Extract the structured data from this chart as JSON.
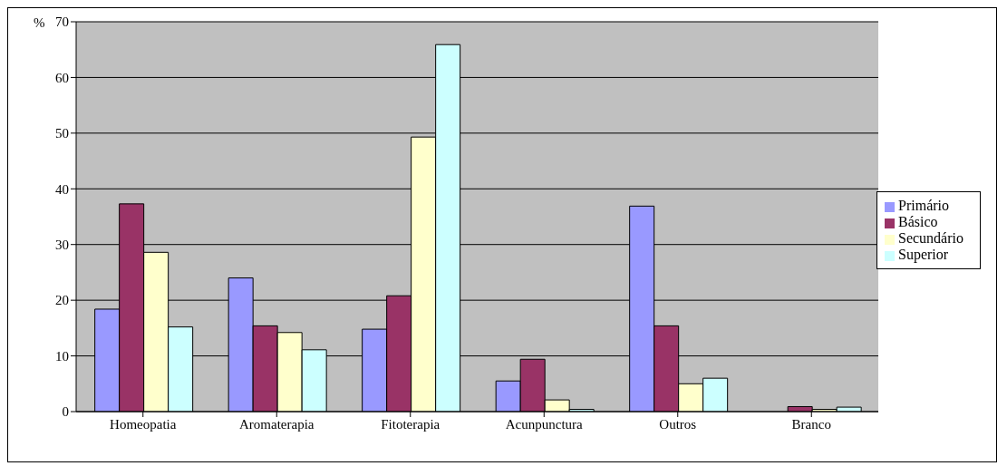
{
  "chart_data": {
    "type": "bar",
    "ylabel": "%",
    "categories": [
      "Homeopatia",
      "Aromaterapia",
      "Fitoterapia",
      "Acunpunctura",
      "Outros",
      "Branco"
    ],
    "series": [
      {
        "name": "Primário",
        "color": "#9999ff",
        "values": [
          18.4,
          24.0,
          14.8,
          5.5,
          36.9,
          0
        ]
      },
      {
        "name": "Básico",
        "color": "#993366",
        "values": [
          37.3,
          15.4,
          20.8,
          9.4,
          15.4,
          0.9
        ]
      },
      {
        "name": "Secundário",
        "color": "#ffffcc",
        "values": [
          28.6,
          14.2,
          49.3,
          2.1,
          5.0,
          0.4
        ]
      },
      {
        "name": "Superior",
        "color": "#ccffff",
        "values": [
          15.2,
          11.1,
          65.9,
          0.4,
          6.0,
          0.8
        ]
      }
    ],
    "ylim": [
      0,
      70
    ],
    "yticks": [
      0,
      10,
      20,
      30,
      40,
      50,
      60,
      70
    ],
    "grid": "y",
    "legend": "right"
  }
}
